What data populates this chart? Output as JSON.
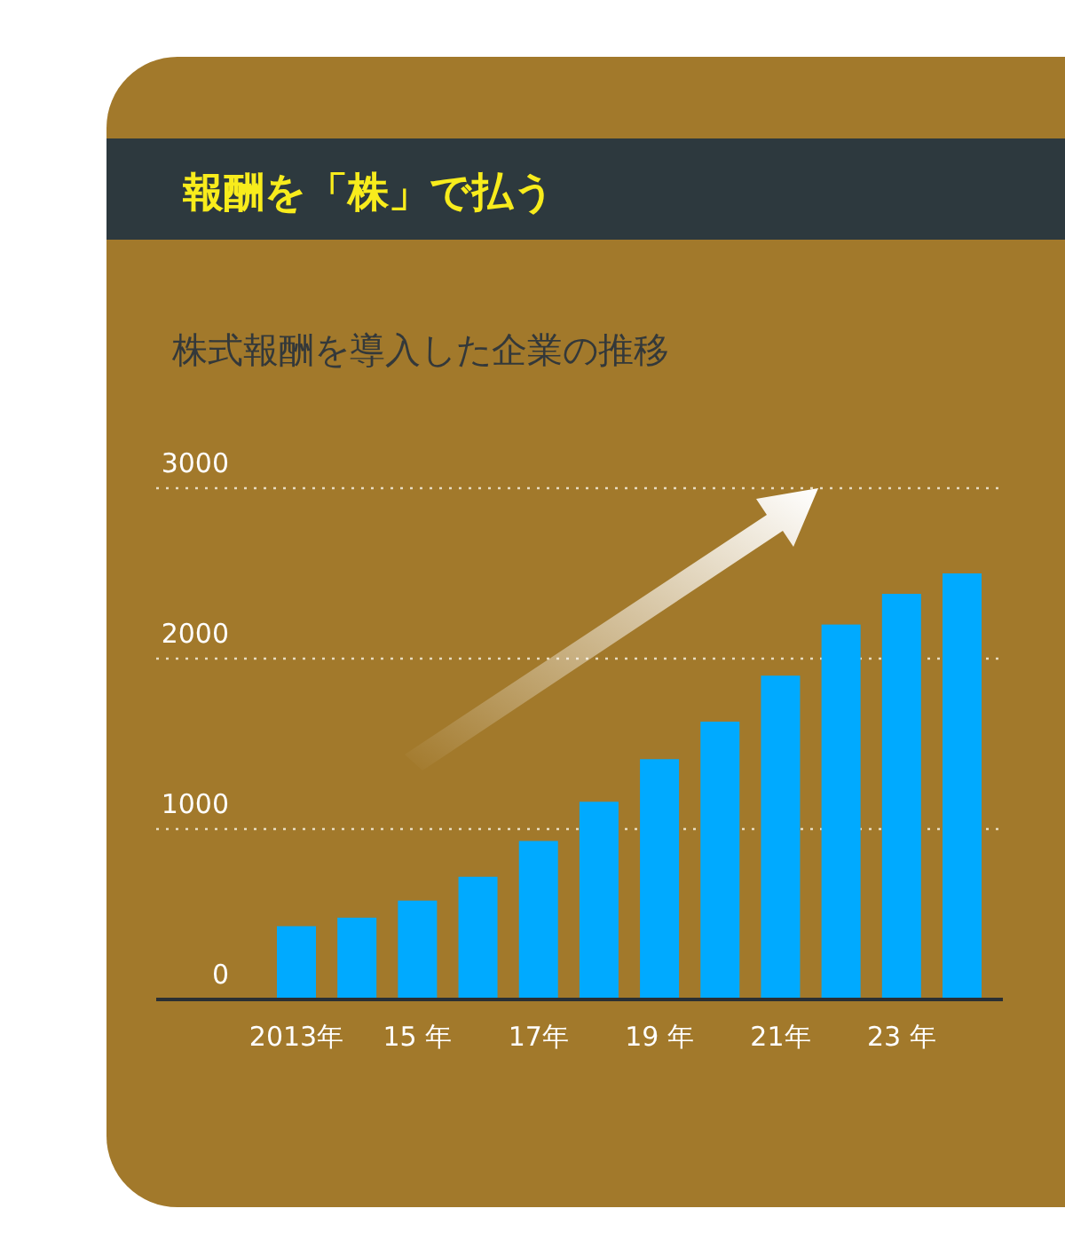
{
  "chart_data": {
    "type": "bar",
    "title": "報酬を「株」で払う",
    "subtitle": "株式報酬を導入した企業の推移",
    "categories": [
      "2013年",
      null,
      "15 年",
      null,
      "17年",
      null,
      "19 年",
      null,
      "21年",
      null,
      "23 年",
      null
    ],
    "values": [
      430,
      480,
      580,
      720,
      930,
      1160,
      1410,
      1630,
      1900,
      2200,
      2380,
      2500
    ],
    "color": "#00aaff",
    "ylim": [
      0,
      3000
    ],
    "yticks": [
      0,
      1000,
      2000,
      3000
    ],
    "grid": "y"
  }
}
